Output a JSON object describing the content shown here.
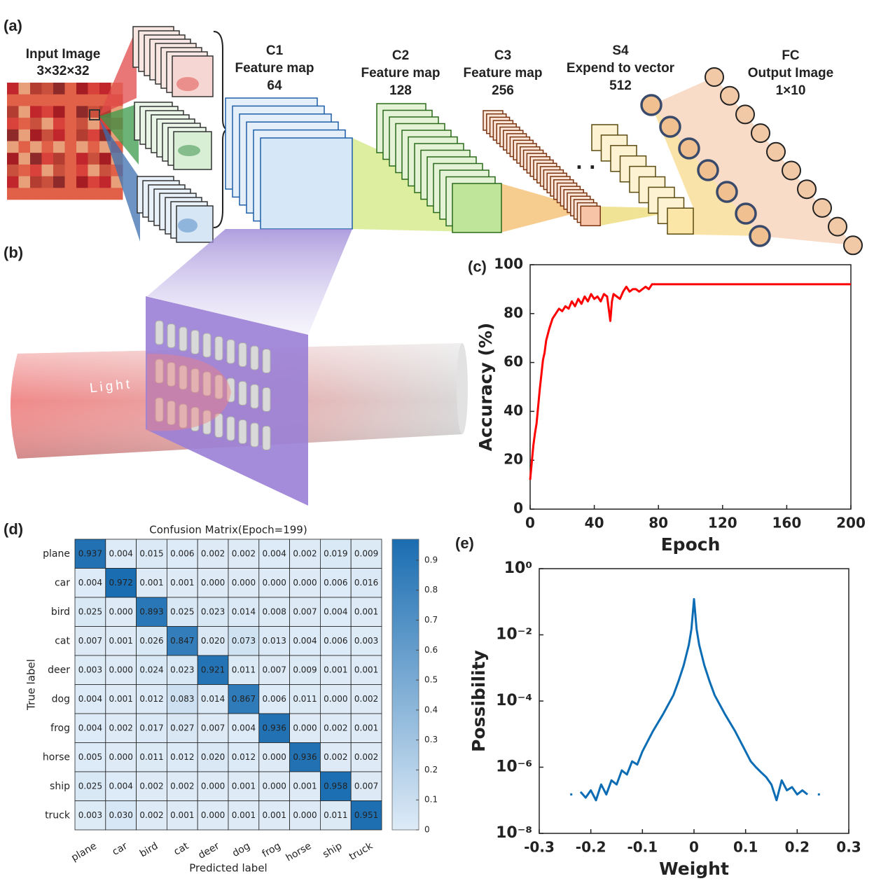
{
  "panel_labels": [
    "(a)",
    "(b)",
    "(c)",
    "(d)",
    "(e)"
  ],
  "diagram": {
    "input": {
      "title": "Input Image",
      "size": "3×32×32"
    },
    "layers": [
      {
        "name": "C1",
        "kind": "Feature map",
        "size": "64"
      },
      {
        "name": "C2",
        "kind": "Feature map",
        "size": "128"
      },
      {
        "name": "C3",
        "kind": "Feature map",
        "size": "256"
      },
      {
        "name": "S4",
        "kind": "Expend to vector",
        "size": "512"
      },
      {
        "name": "FC",
        "kind": "Output Image",
        "size": "1×10"
      }
    ],
    "beam_label": "Light"
  },
  "chart_data": [
    {
      "type": "line",
      "xlabel": "Epoch",
      "ylabel": "Accuracy (%)",
      "color": "#ff0000",
      "x": [
        0,
        1,
        2,
        3,
        4,
        5,
        6,
        7,
        8,
        9,
        10,
        12,
        14,
        16,
        18,
        20,
        22,
        24,
        26,
        28,
        30,
        32,
        34,
        36,
        38,
        40,
        42,
        44,
        46,
        48,
        49,
        50,
        51,
        52,
        54,
        56,
        58,
        60,
        62,
        64,
        66,
        68,
        70,
        72,
        74,
        76,
        78,
        80,
        90,
        100,
        110,
        120,
        130,
        140,
        150,
        160,
        170,
        180,
        190,
        200
      ],
      "values": [
        12,
        19,
        26,
        31,
        35,
        42,
        49,
        55,
        61,
        64,
        69,
        74,
        78,
        80,
        82,
        81,
        83,
        82,
        85,
        83,
        86,
        84,
        87,
        85,
        88,
        86,
        87,
        85,
        88,
        87,
        82,
        77,
        85,
        88,
        87,
        86,
        89,
        91,
        89,
        90,
        90,
        89,
        90,
        91,
        90,
        92,
        92,
        92,
        92,
        92,
        92,
        92,
        92,
        92,
        92,
        92,
        92,
        92,
        92,
        92
      ],
      "xlim": [
        0,
        200
      ],
      "xticks": [
        0,
        40,
        80,
        120,
        160,
        200
      ],
      "ylim": [
        0,
        100
      ],
      "yticks": [
        0,
        20,
        40,
        60,
        80,
        100
      ]
    },
    {
      "type": "heatmap",
      "title": "Confusion Matrix(Epoch=199)",
      "xlabel": "Predicted label",
      "ylabel": "True label",
      "categories": [
        "plane",
        "car",
        "bird",
        "cat",
        "deer",
        "dog",
        "frog",
        "horse",
        "ship",
        "truck"
      ],
      "values": [
        [
          0.937,
          0.004,
          0.015,
          0.006,
          0.002,
          0.002,
          0.004,
          0.002,
          0.019,
          0.009
        ],
        [
          0.004,
          0.972,
          0.001,
          0.001,
          0.0,
          0.0,
          0.0,
          0.0,
          0.006,
          0.016
        ],
        [
          0.025,
          0.0,
          0.893,
          0.025,
          0.023,
          0.014,
          0.008,
          0.007,
          0.004,
          0.001
        ],
        [
          0.007,
          0.001,
          0.026,
          0.847,
          0.02,
          0.073,
          0.013,
          0.004,
          0.006,
          0.003
        ],
        [
          0.003,
          0.0,
          0.024,
          0.023,
          0.921,
          0.011,
          0.007,
          0.009,
          0.001,
          0.001
        ],
        [
          0.004,
          0.001,
          0.012,
          0.083,
          0.014,
          0.867,
          0.006,
          0.011,
          0.0,
          0.002
        ],
        [
          0.004,
          0.002,
          0.017,
          0.027,
          0.007,
          0.004,
          0.936,
          0.0,
          0.002,
          0.001
        ],
        [
          0.005,
          0.0,
          0.011,
          0.012,
          0.02,
          0.012,
          0.0,
          0.936,
          0.002,
          0.002
        ],
        [
          0.025,
          0.004,
          0.002,
          0.002,
          0.0,
          0.001,
          0.0,
          0.001,
          0.958,
          0.007
        ],
        [
          0.003,
          0.03,
          0.002,
          0.001,
          0.0,
          0.001,
          0.001,
          0.0,
          0.011,
          0.951
        ]
      ],
      "value_labels": [
        [
          "0.937",
          "0.004",
          "0.015",
          "0.006",
          "0.002",
          "0.002",
          "0.004",
          "0.002",
          "0.019",
          "0.009"
        ],
        [
          "0.004",
          "0.972",
          "0.001",
          "0.001",
          "0.000",
          "0.000",
          "0.000",
          "0.000",
          "0.006",
          "0.016"
        ],
        [
          "0.025",
          "0.000",
          "0.893",
          "0.025",
          "0.023",
          "0.014",
          "0.008",
          "0.007",
          "0.004",
          "0.001"
        ],
        [
          "0.007",
          "0.001",
          "0.026",
          "0.847",
          "0.020",
          "0.073",
          "0.013",
          "0.004",
          "0.006",
          "0.003"
        ],
        [
          "0.003",
          "0.000",
          "0.024",
          "0.023",
          "0.921",
          "0.011",
          "0.007",
          "0.009",
          "0.001",
          "0.001"
        ],
        [
          "0.004",
          "0.001",
          "0.012",
          "0.083",
          "0.014",
          "0.867",
          "0.006",
          "0.011",
          "0.000",
          "0.002"
        ],
        [
          "0.004",
          "0.002",
          "0.017",
          "0.027",
          "0.007",
          "0.004",
          "0.936",
          "0.000",
          "0.002",
          "0.001"
        ],
        [
          "0.005",
          "0.000",
          "0.011",
          "0.012",
          "0.020",
          "0.012",
          "0.000",
          "0.936",
          "0.002",
          "0.002"
        ],
        [
          "0.025",
          "0.004",
          "0.002",
          "0.002",
          "0.000",
          "0.001",
          "0.000",
          "0.001",
          "0.958",
          "0.007"
        ],
        [
          "0.003",
          "0.030",
          "0.002",
          "0.001",
          "0.000",
          "0.001",
          "0.001",
          "0.000",
          "0.011",
          "0.951"
        ]
      ],
      "colormap": [
        "#deebf7",
        "#1a6db1"
      ],
      "clim": [
        0,
        0.97
      ],
      "cticks": [
        0,
        0.1,
        0.2,
        0.3,
        0.4,
        0.5,
        0.6,
        0.7,
        0.8,
        0.9
      ]
    },
    {
      "type": "line",
      "xlabel": "Weight",
      "ylabel": "Possibility",
      "color": "#0c6db5",
      "yscale": "log",
      "x": [
        -0.24,
        -0.23,
        -0.22,
        -0.21,
        -0.2,
        -0.19,
        -0.18,
        -0.17,
        -0.16,
        -0.15,
        -0.14,
        -0.13,
        -0.12,
        -0.11,
        -0.1,
        -0.08,
        -0.06,
        -0.04,
        -0.03,
        -0.02,
        -0.01,
        -0.005,
        0,
        0.005,
        0.01,
        0.02,
        0.03,
        0.04,
        0.06,
        0.08,
        0.1,
        0.11,
        0.12,
        0.13,
        0.14,
        0.15,
        0.16,
        0.17,
        0.18,
        0.19,
        0.2,
        0.21,
        0.22,
        0.23,
        0.24
      ],
      "values": [
        1.5e-07,
        null,
        1.8e-07,
        1.2e-07,
        2e-07,
        1e-07,
        3e-07,
        1.5e-07,
        4e-07,
        3e-07,
        8e-07,
        6e-07,
        1.5e-06,
        1.2e-06,
        3e-06,
        1.2e-05,
        4e-05,
        0.00015,
        0.0004,
        0.0012,
        0.005,
        0.015,
        0.12,
        0.015,
        0.005,
        0.0012,
        0.0004,
        0.00015,
        4e-05,
        1.2e-05,
        3e-06,
        1.5e-06,
        1e-06,
        7e-07,
        5e-07,
        3e-07,
        1e-07,
        4e-07,
        2e-07,
        2.5e-07,
        1.5e-07,
        2e-07,
        1.5e-07,
        null,
        1.5e-07
      ],
      "xlim": [
        -0.3,
        0.3
      ],
      "xticks": [
        -0.3,
        -0.2,
        -0.1,
        0,
        0.1,
        0.2,
        0.3
      ],
      "ylim": [
        1e-08,
        1
      ],
      "yticks": [
        {
          "value": 1e-08,
          "label": "10⁻⁸"
        },
        {
          "value": 1e-06,
          "label": "10⁻⁶"
        },
        {
          "value": 0.0001,
          "label": "10⁻⁴"
        },
        {
          "value": 0.01,
          "label": "10⁻²"
        },
        {
          "value": 1,
          "label": "10⁰"
        }
      ]
    }
  ]
}
